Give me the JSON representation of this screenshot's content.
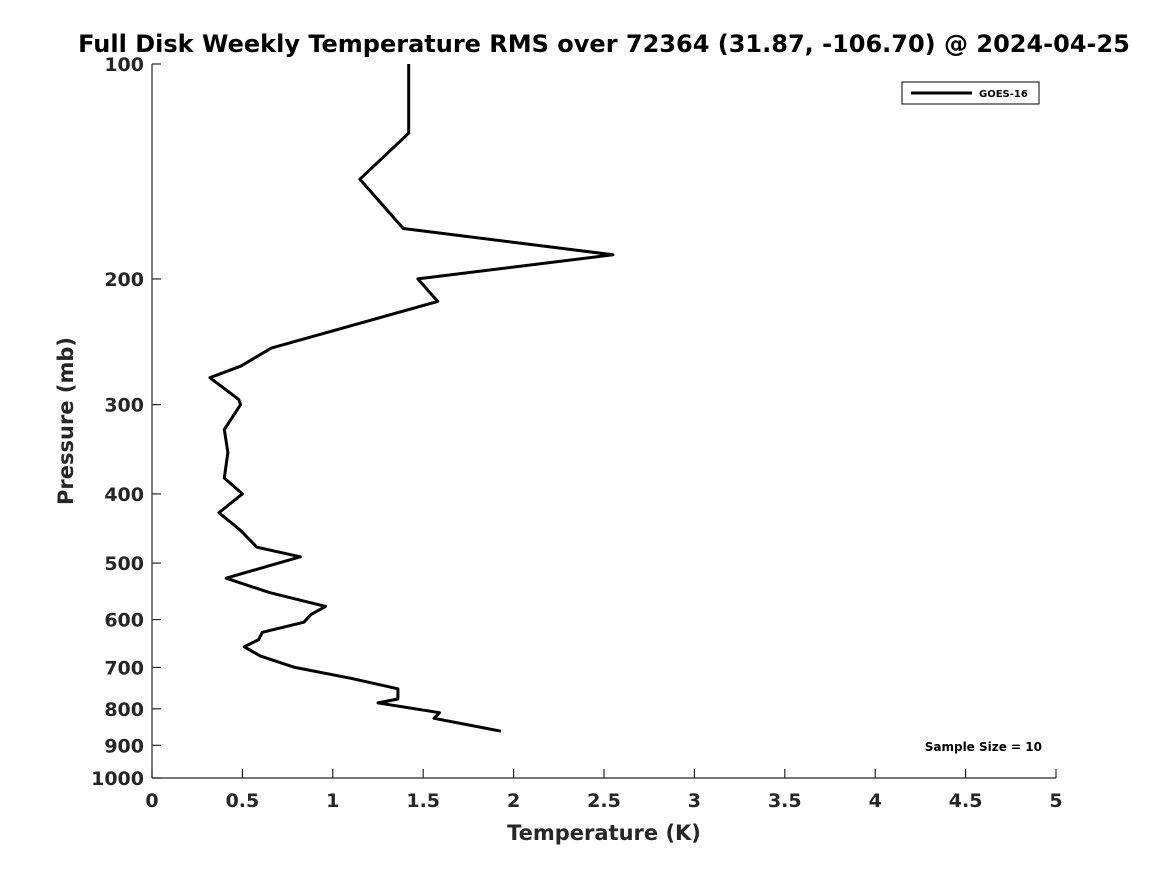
{
  "chart_data": {
    "type": "line",
    "title": "Full Disk Weekly Temperature RMS over 72364 (31.87, -106.70) @ 2024-04-25",
    "xlabel": "Temperature (K)",
    "ylabel": "Pressure (mb)",
    "xlim": [
      0,
      5
    ],
    "ylim": [
      100,
      1000
    ],
    "y_scale": "log",
    "y_reversed": true,
    "x_ticks": [
      0,
      0.5,
      1,
      1.5,
      2,
      2.5,
      3,
      3.5,
      4,
      4.5,
      5
    ],
    "x_tick_labels": [
      "0",
      "0.5",
      "1",
      "1.5",
      "2",
      "2.5",
      "3",
      "3.5",
      "4",
      "4.5",
      "5"
    ],
    "y_ticks": [
      100,
      200,
      300,
      400,
      500,
      600,
      700,
      800,
      900,
      1000
    ],
    "y_tick_labels": [
      "100",
      "200",
      "300",
      "400",
      "500",
      "600",
      "700",
      "800",
      "900",
      "1000"
    ],
    "grid": false,
    "legend_position": "top-right",
    "annotation": "Sample Size = 10",
    "series": [
      {
        "name": "GOES-16",
        "color": "#000000",
        "points": [
          {
            "x": 1.42,
            "y": 100
          },
          {
            "x": 1.42,
            "y": 125
          },
          {
            "x": 1.15,
            "y": 145
          },
          {
            "x": 1.39,
            "y": 170
          },
          {
            "x": 2.55,
            "y": 185
          },
          {
            "x": 1.47,
            "y": 200
          },
          {
            "x": 1.58,
            "y": 215
          },
          {
            "x": 0.66,
            "y": 250
          },
          {
            "x": 0.49,
            "y": 265
          },
          {
            "x": 0.32,
            "y": 275
          },
          {
            "x": 0.48,
            "y": 295
          },
          {
            "x": 0.49,
            "y": 300
          },
          {
            "x": 0.4,
            "y": 325
          },
          {
            "x": 0.42,
            "y": 350
          },
          {
            "x": 0.4,
            "y": 380
          },
          {
            "x": 0.5,
            "y": 400
          },
          {
            "x": 0.37,
            "y": 425
          },
          {
            "x": 0.49,
            "y": 450
          },
          {
            "x": 0.58,
            "y": 475
          },
          {
            "x": 0.82,
            "y": 490
          },
          {
            "x": 0.64,
            "y": 505
          },
          {
            "x": 0.41,
            "y": 525
          },
          {
            "x": 0.65,
            "y": 550
          },
          {
            "x": 0.96,
            "y": 575
          },
          {
            "x": 0.88,
            "y": 590
          },
          {
            "x": 0.84,
            "y": 605
          },
          {
            "x": 0.61,
            "y": 625
          },
          {
            "x": 0.59,
            "y": 640
          },
          {
            "x": 0.51,
            "y": 655
          },
          {
            "x": 0.6,
            "y": 675
          },
          {
            "x": 0.79,
            "y": 700
          },
          {
            "x": 1.1,
            "y": 725
          },
          {
            "x": 1.36,
            "y": 750
          },
          {
            "x": 1.36,
            "y": 775
          },
          {
            "x": 1.25,
            "y": 785
          },
          {
            "x": 1.59,
            "y": 810
          },
          {
            "x": 1.56,
            "y": 825
          },
          {
            "x": 1.72,
            "y": 840
          },
          {
            "x": 1.93,
            "y": 860
          }
        ]
      }
    ]
  }
}
